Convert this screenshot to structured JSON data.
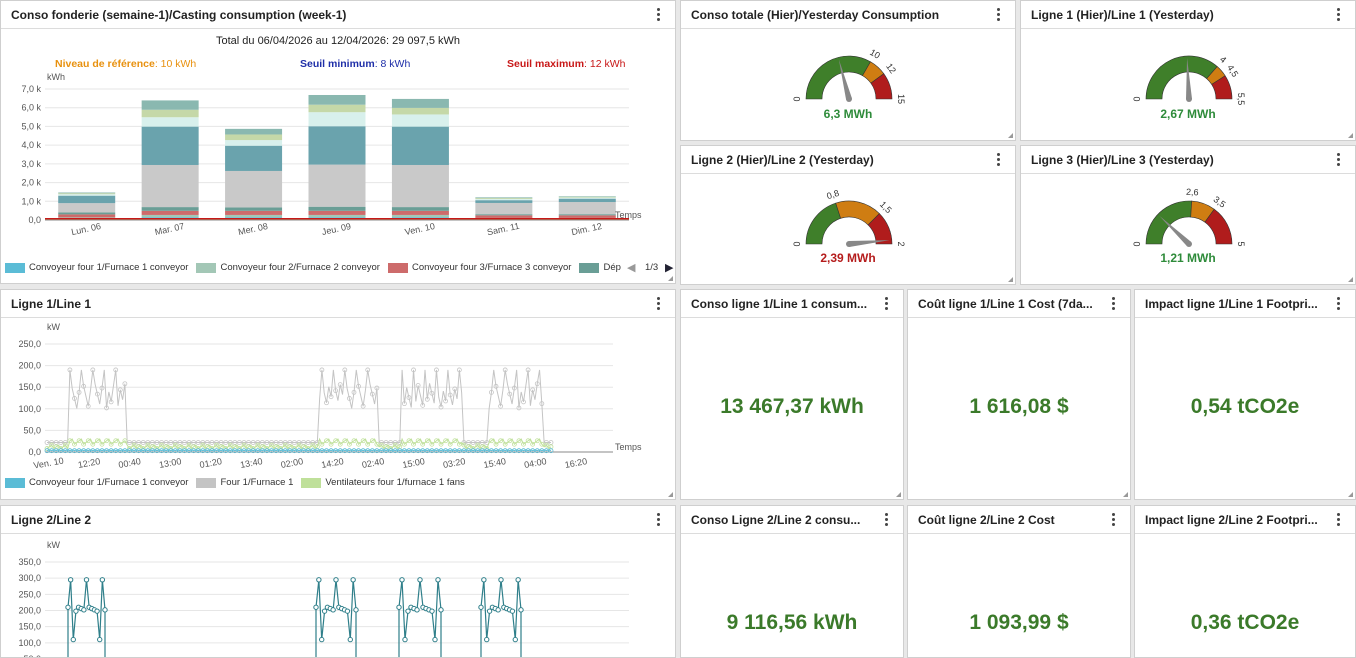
{
  "p1": {
    "title": "Conso fonderie (semaine-1)/Casting consumption (week-1)",
    "total": "Total du 06/04/2026 au 12/04/2026: 29 097,5 kWh",
    "ref_label": "Niveau de référence",
    "ref_value": ": 10 kWh",
    "min_label": "Seuil minimum",
    "min_value": ": 8 kWh",
    "max_label": "Seuil maximum",
    "max_value": ": 12 kWh",
    "legend": [
      {
        "label": "Convoyeur four 1/Furnace 1 conveyor",
        "color": "#5bbcd6"
      },
      {
        "label": "Convoyeur four 2/Furnace 2 conveyor",
        "color": "#a3c7b6"
      },
      {
        "label": "Convoyeur four 3/Furnace 3 conveyor",
        "color": "#cd6b6b"
      },
      {
        "label": "Dép",
        "color": "#6a9e96"
      }
    ],
    "pager": "1/3",
    "threshold_colors": {
      "ref": "#e8910f",
      "min": "#1f2fa8",
      "max": "#c81818"
    }
  },
  "g1": {
    "title": "Conso totale (Hier)/Yesterday Consumption",
    "value": "6,3 MWh",
    "color": "#2e8b3a",
    "min": "0",
    "t1": "10",
    "t2": "12",
    "max": "15",
    "ratio": 0.42
  },
  "g2": {
    "title": "Ligne 1 (Hier)/Line 1 (Yesterday)",
    "value": "2,67 MWh",
    "color": "#2e8b3a",
    "min": "0",
    "t1": "4",
    "t2": "4,5",
    "max": "5,5",
    "ratio": 0.485
  },
  "g3": {
    "title": "Ligne 2 (Hier)/Line 2 (Yesterday)",
    "value": "2,39 MWh",
    "color": "#b51c1c",
    "min": "0",
    "t1": "0,8",
    "t2": "1,5",
    "max": "2",
    "ratio": 0.97
  },
  "g4": {
    "title": "Ligne 3 (Hier)/Line 3 (Yesterday)",
    "value": "1,21 MWh",
    "color": "#2e8b3a",
    "min": "0",
    "t1": "2,6",
    "t2": "3,5",
    "max": "5",
    "ratio": 0.242
  },
  "p2": {
    "title": "Ligne 1/Line 1",
    "legend": [
      {
        "label": "Convoyeur four 1/Furnace 1 conveyor",
        "color": "#5bbcd6"
      },
      {
        "label": "Four 1/Furnace 1",
        "color": "#c4c4c4"
      },
      {
        "label": "Ventilateurs four 1/furnace 1 fans",
        "color": "#bfe09a"
      }
    ]
  },
  "p3": {
    "title": "Ligne 2/Line 2"
  },
  "k1": {
    "title": "Conso ligne 1/Line 1 consum...",
    "value": "13 467,37 kWh"
  },
  "k2": {
    "title": "Coût ligne 1/Line 1 Cost (7da...",
    "value": "1 616,08 $"
  },
  "k3": {
    "title": "Impact ligne 1/Line 1 Footpri...",
    "value": "0,54 tCO2e"
  },
  "k4": {
    "title": "Conso Ligne 2/Line 2 consu...",
    "value": "9 116,56 kWh"
  },
  "k5": {
    "title": "Coût ligne 2/Line 2 Cost",
    "value": "1 093,99 $"
  },
  "k6": {
    "title": "Impact ligne 2/Line 2 Footpri...",
    "value": "0,36 tCO2e"
  },
  "chart_data": [
    {
      "type": "bar",
      "stacked": true,
      "ylabel": "kWh",
      "xlabel": "Temps",
      "categories": [
        "Lun. 06",
        "Mar. 07",
        "Mer. 08",
        "Jeu. 09",
        "Ven. 10",
        "Sam. 11",
        "Dim. 12"
      ],
      "yticks": [
        "0,0",
        "1,0 k",
        "2,0 k",
        "3,0 k",
        "4,0 k",
        "5,0 k",
        "6,0 k",
        "7,0 k"
      ],
      "ylim": [
        0,
        7000
      ],
      "series": [
        {
          "name": "Convoyeur four 1/Furnace 1 conveyor",
          "color": "#5bbcd6",
          "values": [
            80,
            150,
            150,
            150,
            150,
            60,
            60
          ]
        },
        {
          "name": "Convoyeur four 2/Furnace 2 conveyor",
          "color": "#a3c7b6",
          "values": [
            60,
            120,
            120,
            120,
            120,
            50,
            50
          ]
        },
        {
          "name": "Convoyeur four 3/Furnace 3 conveyor",
          "color": "#cd6b6b",
          "values": [
            160,
            220,
            220,
            220,
            220,
            140,
            140
          ]
        },
        {
          "name": "Dép",
          "color": "#6a9e96",
          "values": [
            100,
            200,
            180,
            220,
            200,
            60,
            60
          ]
        },
        {
          "values": [
            500,
            2250,
            1950,
            2250,
            2250,
            600,
            650
          ],
          "color": "#c9c9c9"
        },
        {
          "values": [
            400,
            2050,
            1350,
            2050,
            2050,
            150,
            180
          ],
          "color": "#6aa3ad"
        },
        {
          "values": [
            80,
            500,
            300,
            750,
            650,
            60,
            60
          ],
          "color": "#d8f0ec"
        },
        {
          "values": [
            50,
            400,
            300,
            400,
            350,
            50,
            40
          ],
          "color": "#c5d8a8"
        },
        {
          "values": [
            40,
            500,
            300,
            520,
            480,
            40,
            30
          ],
          "color": "#8ab8b0"
        }
      ]
    },
    {
      "type": "line",
      "ylabel": "kW",
      "xlabel": "Temps",
      "yticks": [
        "0,0",
        "50,0",
        "100,0",
        "150,0",
        "200,0",
        "250,0"
      ],
      "ylim": [
        0,
        250
      ],
      "xticks": [
        "Ven. 10",
        "12:20",
        "00:40",
        "13:00",
        "01:20",
        "13:40",
        "02:00",
        "14:20",
        "02:40",
        "15:00",
        "03:20",
        "15:40",
        "04:00",
        "16:20"
      ],
      "series": [
        {
          "name": "Convoyeur four 1/Furnace 1 conveyor",
          "color": "#5bbcd6"
        },
        {
          "name": "Four 1/Furnace 1",
          "color": "#c4c4c4"
        },
        {
          "name": "Ventilateurs four 1/furnace 1 fans",
          "color": "#bfe09a"
        }
      ]
    },
    {
      "type": "line",
      "ylabel": "kW",
      "yticks": [
        "50,0",
        "100,0",
        "150,0",
        "200,0",
        "250,0",
        "300,0",
        "350,0"
      ],
      "ylim": [
        0,
        350
      ],
      "series": [
        {
          "color": "#2f7f8a"
        }
      ]
    }
  ]
}
